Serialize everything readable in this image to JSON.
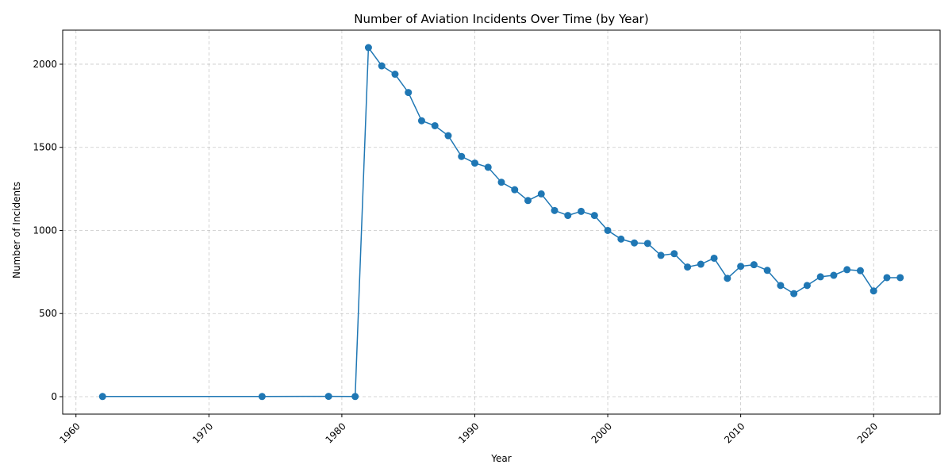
{
  "chart_data": {
    "type": "line",
    "title": "Number of Aviation Incidents Over Time (by Year)",
    "xlabel": "Year",
    "ylabel": "Number of Incidents",
    "xlim": [
      1959,
      2025
    ],
    "ylim": [
      -105,
      2205
    ],
    "x_ticks": [
      1960,
      1970,
      1980,
      1990,
      2000,
      2010,
      2020
    ],
    "y_ticks": [
      0,
      500,
      1000,
      1500,
      2000
    ],
    "grid": true,
    "color": "#1f77b4",
    "marker": "circle",
    "series": [
      {
        "x": [
          1962,
          1974,
          1979,
          1981,
          1982,
          1983,
          1984,
          1985,
          1986,
          1987,
          1988,
          1989,
          1990,
          1991,
          1992,
          1993,
          1994,
          1995,
          1996,
          1997,
          1998,
          1999,
          2000,
          2001,
          2002,
          2003,
          2004,
          2005,
          2006,
          2007,
          2008,
          2009,
          2010,
          2011,
          2012,
          2013,
          2014,
          2015,
          2016,
          2017,
          2018,
          2019,
          2020,
          2021,
          2022
        ],
        "values": [
          1,
          1,
          2,
          1,
          2100,
          1990,
          1940,
          1830,
          1660,
          1630,
          1570,
          1445,
          1405,
          1380,
          1290,
          1245,
          1180,
          1220,
          1120,
          1090,
          1115,
          1090,
          1000,
          948,
          925,
          922,
          850,
          860,
          780,
          797,
          833,
          712,
          784,
          794,
          760,
          669,
          620,
          669,
          721,
          730,
          764,
          758,
          636,
          716,
          716
        ]
      }
    ]
  }
}
